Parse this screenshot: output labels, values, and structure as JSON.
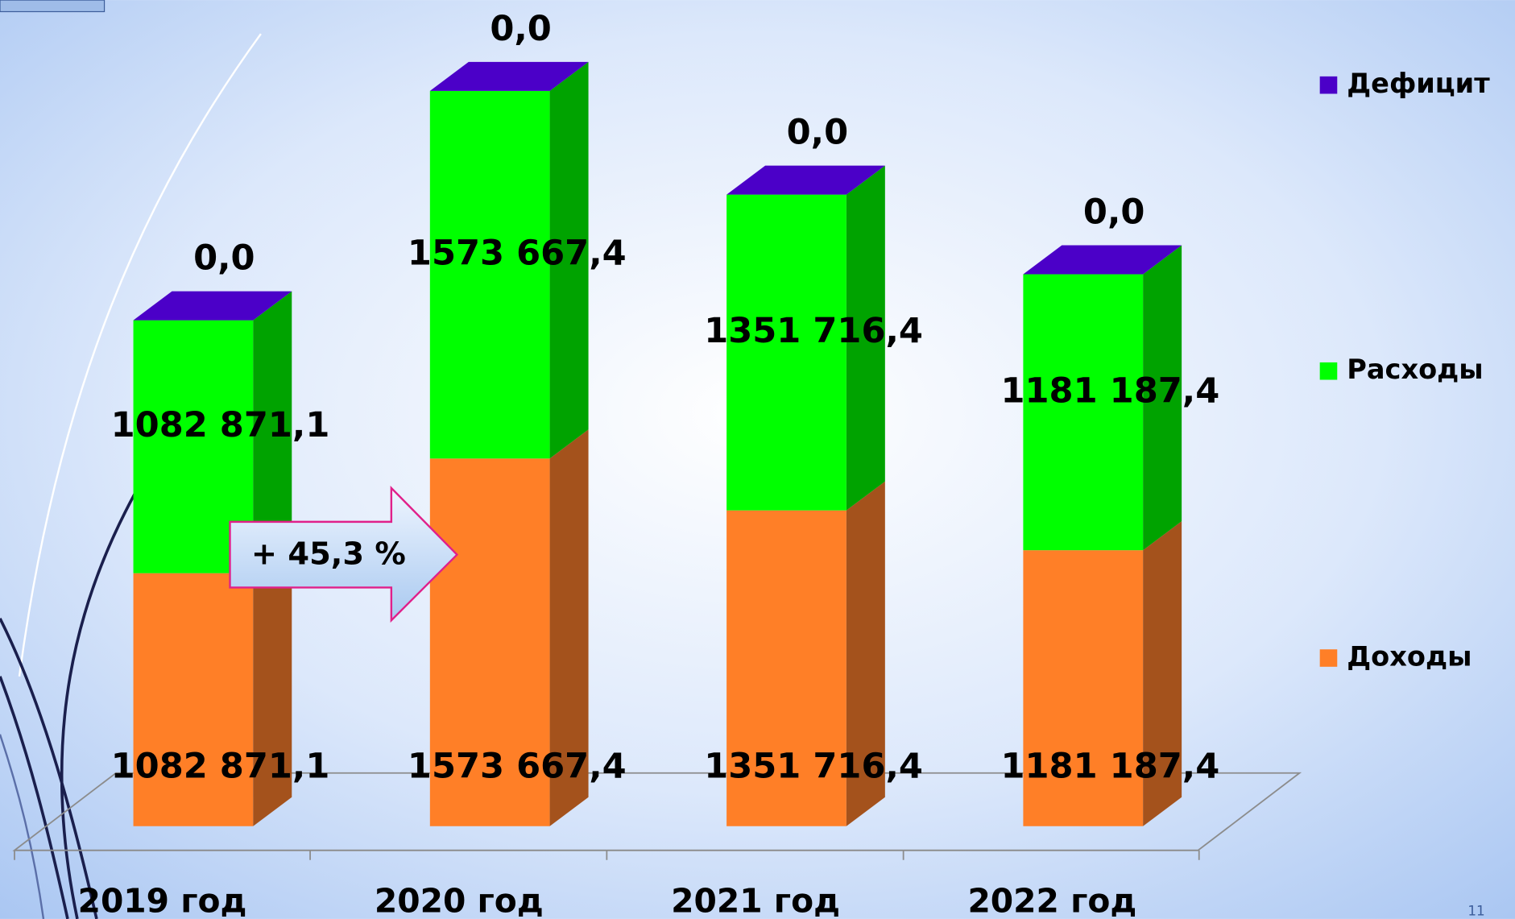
{
  "chart_data": {
    "type": "bar3d_stacked",
    "categories": [
      "2019 год",
      "2020 год",
      "2021 год",
      "2022 год"
    ],
    "series": [
      {
        "name": "Доходы",
        "color": "#FF7F27",
        "side_color": "#A4521C",
        "values": [
          1082871.1,
          1573667.4,
          1351716.4,
          1181187.4
        ],
        "value_labels": [
          "1082 871,1",
          "1573 667,4",
          "1351 716,4",
          "1181 187,4"
        ]
      },
      {
        "name": "Расходы",
        "color": "#00FF00",
        "side_color": "#00A300",
        "values": [
          1082871.1,
          1573667.4,
          1351716.4,
          1181187.4
        ],
        "value_labels": [
          "1082 871,1",
          "1573 667,4",
          "1351 716,4",
          "1181 187,4"
        ]
      },
      {
        "name": "Дефицит",
        "color": "#4B00C8",
        "side_color": "#3A0099",
        "values": [
          0,
          0,
          0,
          0
        ],
        "value_labels": [
          "0,0",
          "0,0",
          "0,0",
          "0,0"
        ]
      }
    ],
    "annotation": "+ 45,3 %",
    "page_number": "11"
  }
}
